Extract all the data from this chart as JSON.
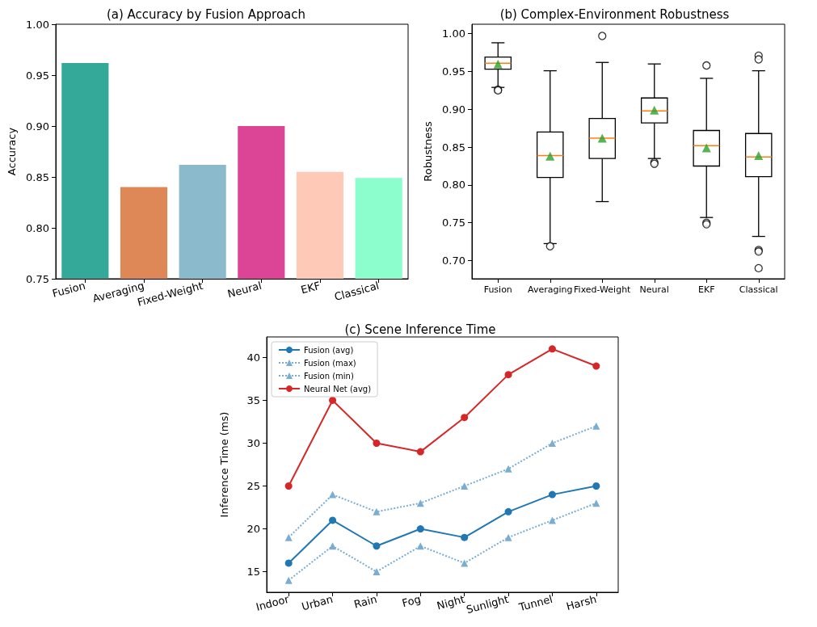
{
  "chart_data": [
    {
      "type": "bar",
      "title": "(a) Accuracy by Fusion Approach",
      "ylabel": "Accuracy",
      "categories": [
        "Fusion",
        "Averaging",
        "Fixed-Weight",
        "Neural",
        "EKF",
        "Classical"
      ],
      "values": [
        0.962,
        0.84,
        0.862,
        0.9,
        0.855,
        0.849
      ],
      "colors": [
        "#34a99a",
        "#dd8856",
        "#8abacb",
        "#dc4496",
        "#fec9b7",
        "#8cfdcd"
      ],
      "ylim": [
        0.75,
        1.0
      ],
      "yticks": [
        0.75,
        {
          "value": 0.8,
          "label": "0.80"
        },
        0.85,
        {
          "value": 0.9,
          "label": "0.90"
        },
        0.95,
        {
          "value": 1.0,
          "label": "1.00"
        }
      ],
      "grid": false
    },
    {
      "type": "box",
      "title": "(b) Complex-Environment Robustness",
      "ylabel": "Robustness",
      "categories": [
        "Fusion",
        "Averaging",
        "Fixed-Weight",
        "Neural",
        "EKF",
        "Classical"
      ],
      "boxes": [
        {
          "low": 0.929,
          "q1": 0.953,
          "median": 0.961,
          "q3": 0.969,
          "high": 0.988,
          "mean": 0.96,
          "outliers": [
            0.926,
            0.925
          ]
        },
        {
          "low": 0.7225,
          "q1": 0.81,
          "median": 0.839,
          "q3": 0.87,
          "high": 0.951,
          "mean": 0.838,
          "outliers": [
            0.719
          ]
        },
        {
          "low": 0.778,
          "q1": 0.835,
          "median": 0.862,
          "q3": 0.888,
          "high": 0.962,
          "mean": 0.862,
          "outliers": [
            0.997
          ]
        },
        {
          "low": 0.835,
          "q1": 0.882,
          "median": 0.898,
          "q3": 0.915,
          "high": 0.96,
          "mean": 0.899,
          "outliers": [
            0.83,
            0.828
          ]
        },
        {
          "low": 0.757,
          "q1": 0.825,
          "median": 0.852,
          "q3": 0.872,
          "high": 0.941,
          "mean": 0.849,
          "outliers": [
            0.958,
            0.75,
            0.748
          ]
        },
        {
          "low": 0.732,
          "q1": 0.811,
          "median": 0.837,
          "q3": 0.868,
          "high": 0.951,
          "mean": 0.839,
          "outliers": [
            0.971,
            0.966,
            0.714,
            0.712,
            0.69
          ]
        }
      ],
      "ylim": [
        0.676,
        1.0125
      ],
      "yticks": [
        {
          "value": 0.7,
          "label": "0.70"
        },
        0.75,
        {
          "value": 0.8,
          "label": "0.80"
        },
        0.85,
        {
          "value": 0.9,
          "label": "0.90"
        },
        0.95,
        {
          "value": 1.0,
          "label": "1.00"
        }
      ],
      "grid": false
    },
    {
      "type": "line",
      "title": "(c) Scene Inference Time",
      "ylabel": "Inference Time (ms)",
      "categories": [
        "Indoor",
        "Urban",
        "Rain",
        "Fog",
        "Night",
        "Sunlight",
        "Tunnel",
        "Harsh"
      ],
      "series": [
        {
          "name": "Fusion (avg)",
          "color": "#1f77b4",
          "marker": "circle",
          "line_style": "solid",
          "values": [
            16,
            21,
            18,
            20,
            19,
            22,
            24,
            25
          ]
        },
        {
          "name": "Fusion (max)",
          "color": "#79add2",
          "marker": "triangle",
          "line_style": "dotted",
          "values": [
            19,
            24,
            22,
            23,
            25,
            27,
            30,
            32
          ]
        },
        {
          "name": "Fusion (min)",
          "color": "#79add2",
          "marker": "triangle",
          "line_style": "dotted",
          "values": [
            14,
            18,
            15,
            18,
            16,
            19,
            21,
            23
          ]
        },
        {
          "name": "Neural Net (avg)",
          "color": "#d62728",
          "marker": "circle",
          "line_style": "solid",
          "values": [
            25,
            35,
            30,
            29,
            33,
            38,
            41,
            39
          ]
        }
      ],
      "ylim": [
        12.6,
        42.4
      ],
      "yticks": [
        15,
        20,
        25,
        30,
        35,
        40
      ],
      "legend": "top left",
      "grid": false
    }
  ]
}
